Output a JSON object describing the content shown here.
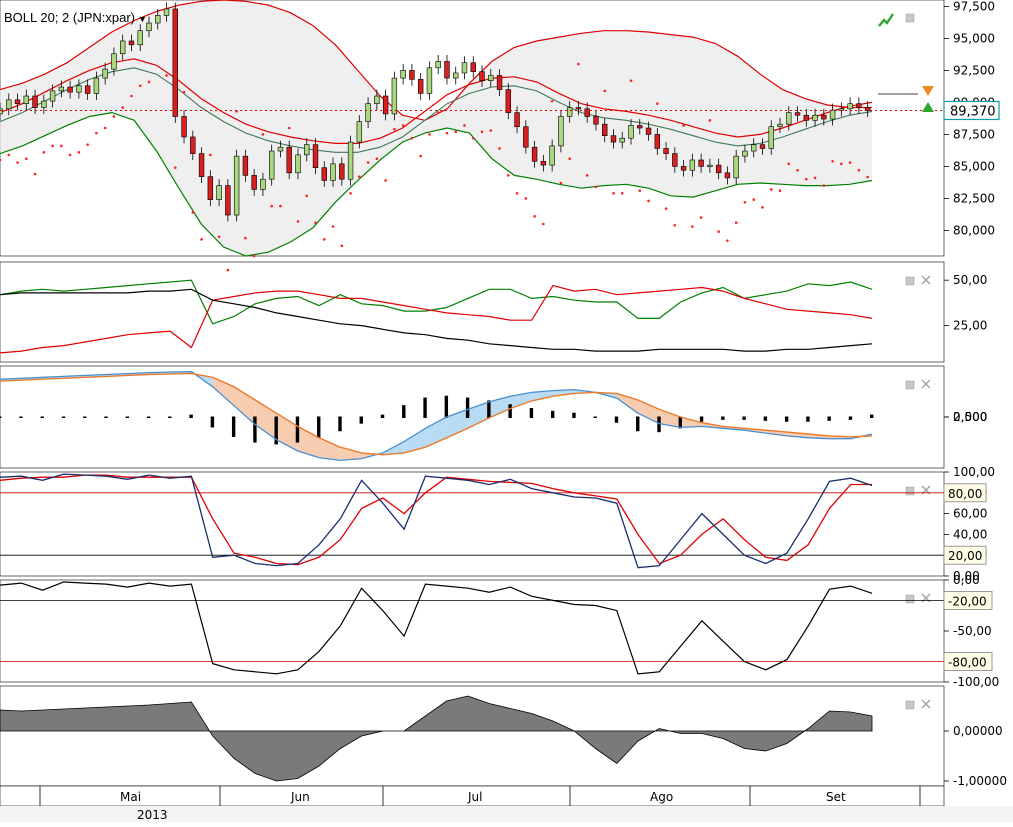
{
  "indicator_label": "BOLL 20; 2 (JPN:xpar)",
  "dropdown_icon": "triangle-down-icon",
  "colors": {
    "price_band_upper": "#e00000",
    "price_band_lower": "#008000",
    "price_band_mid": "#e00000",
    "price_band_fill": "#e8e8e8",
    "sar_dots": "#ff2020",
    "candle_up": "#a9d87f",
    "candle_down": "#d81e1e",
    "macd_line": "#4a90d0",
    "macd_signal": "#ee7a2a",
    "macd_fill_up": "#b9dbf4",
    "macd_fill_down": "#f6cdb0",
    "histogram": "#000000",
    "level_line_red": "#cc0000",
    "area_fill": "#7a7a7a",
    "last_price_label": "#0d9da4"
  },
  "chart_data": [
    {
      "name": "price",
      "type": "candlestick",
      "x": [
        "Mai",
        "Jun",
        "Jul",
        "Ago",
        "Set"
      ],
      "year_label": "2013",
      "y_ticks": [
        "97,500",
        "95,000",
        "92,500",
        "90,000",
        "87,500",
        "85,000",
        "82,500",
        "80,000"
      ],
      "ylim": [
        78000,
        98000
      ],
      "last_price": 89370,
      "last_price_label": "89,370",
      "candles_close": [
        89.5,
        90.2,
        89.9,
        90.5,
        89.6,
        90.1,
        90.9,
        91.2,
        90.8,
        91.3,
        90.7,
        91.9,
        92.6,
        93.8,
        94.8,
        94.5,
        95.6,
        96.2,
        96.8,
        97.3,
        88.9,
        87.3,
        86.0,
        84.2,
        82.4,
        83.5,
        81.2,
        85.8,
        84.3,
        83.2,
        84.0,
        86.2,
        86.5,
        84.5,
        85.9,
        86.7,
        84.9,
        83.9,
        85.2,
        84.0,
        86.9,
        88.5,
        89.9,
        90.5,
        89.1,
        91.9,
        92.5,
        91.8,
        90.7,
        92.7,
        93.2,
        91.9,
        92.3,
        93.1,
        92.4,
        91.7,
        92.1,
        91.0,
        89.2,
        88.1,
        86.5,
        85.4,
        85.1,
        86.6,
        88.9,
        89.6,
        89.5,
        88.9,
        88.3,
        87.4,
        86.9,
        87.2,
        88.2,
        88.0,
        87.5,
        86.4,
        86.0,
        85.0,
        84.7,
        85.5,
        85.0,
        85.1,
        84.5,
        84.1,
        85.8,
        86.2,
        86.7,
        86.4,
        88.1,
        88.3,
        89.2,
        89.0,
        88.6,
        89.0,
        88.7,
        89.4,
        89.5,
        89.9,
        89.6,
        89.37
      ],
      "upper_band": [
        91.0,
        91.5,
        92.2,
        93.1,
        94.3,
        95.5,
        96.4,
        97.1,
        97.6,
        97.9,
        98.0,
        97.9,
        97.6,
        97.0,
        96.0,
        94.5,
        92.5,
        90.5,
        89.0,
        88.6,
        89.5,
        91.5,
        93.2,
        94.3,
        94.8,
        95.1,
        95.4,
        95.6,
        95.6,
        95.5,
        95.3,
        95.1,
        94.6,
        93.6,
        92.2,
        91.0,
        90.3,
        89.8,
        89.6,
        89.6
      ],
      "middle_band": [
        88.5,
        89.2,
        90.1,
        91.0,
        91.8,
        92.4,
        92.7,
        92.2,
        91.0,
        89.6,
        88.5,
        87.6,
        87.0,
        86.6,
        86.3,
        86.1,
        86.1,
        86.5,
        87.3,
        88.6,
        89.9,
        90.7,
        91.2,
        91.3,
        90.9,
        90.0,
        89.2,
        88.8,
        88.6,
        88.3,
        87.9,
        87.4,
        86.9,
        86.6,
        86.8,
        87.3,
        87.9,
        88.5,
        89.0,
        89.3
      ],
      "lower_band": [
        86.0,
        86.6,
        87.4,
        88.2,
        88.9,
        89.2,
        88.6,
        86.2,
        83.3,
        80.5,
        78.7,
        78.0,
        78.3,
        79.1,
        80.2,
        82.2,
        83.9,
        85.5,
        86.9,
        87.6,
        88.0,
        87.6,
        85.6,
        84.3,
        84.0,
        83.6,
        83.3,
        83.5,
        83.6,
        83.3,
        82.7,
        82.6,
        83.1,
        83.6,
        83.7,
        83.6,
        83.5,
        83.5,
        83.6,
        83.9
      ]
    },
    {
      "name": "dmi",
      "type": "line",
      "y_ticks": [
        "50,00",
        "25,00"
      ],
      "ylim": [
        5,
        60
      ],
      "series": [
        {
          "values": [
            42,
            44,
            45,
            44,
            45,
            46,
            47,
            48,
            49,
            50,
            26,
            30,
            37,
            40,
            41,
            36,
            42,
            37,
            36,
            33,
            33,
            35,
            40,
            45,
            45,
            40,
            41,
            39,
            38,
            38,
            29,
            29,
            38,
            43,
            46,
            40,
            42,
            44,
            48,
            47,
            49,
            45
          ]
        },
        {
          "values": [
            10,
            11,
            13,
            14,
            16,
            18,
            20,
            21,
            22,
            13,
            39,
            41,
            43,
            44,
            44,
            42,
            40,
            40,
            38,
            36,
            34,
            32,
            31,
            30,
            28,
            28,
            47,
            44,
            45,
            42,
            43,
            44,
            45,
            46,
            44,
            40,
            37,
            34,
            33,
            32,
            31,
            29
          ]
        },
        {
          "values": [
            42,
            43,
            43,
            43,
            43,
            43,
            43,
            44,
            44,
            45,
            39,
            37,
            35,
            32,
            30,
            28,
            26,
            25,
            23,
            21,
            20,
            18,
            17,
            15,
            14,
            13,
            12,
            12,
            11,
            11,
            11,
            12,
            12,
            12,
            12,
            11,
            11,
            12,
            12,
            13,
            14,
            15
          ]
        }
      ]
    },
    {
      "name": "macd",
      "type": "line",
      "y_ticks": [
        "2,500",
        "0,000"
      ],
      "ylim": [
        -2700,
        2700
      ],
      "macd_line": [
        2000,
        2050,
        2100,
        2150,
        2200,
        2250,
        2300,
        2350,
        2380,
        2400,
        1600,
        600,
        -400,
        -1200,
        -1800,
        -2150,
        -2300,
        -2200,
        -1900,
        -1300,
        -600,
        0,
        400,
        800,
        1100,
        1300,
        1400,
        1450,
        1300,
        1000,
        200,
        -350,
        -550,
        -500,
        -600,
        -700,
        -850,
        -1000,
        -1100,
        -1150,
        -1150,
        -900
      ],
      "signal_line": [
        1900,
        1950,
        2000,
        2050,
        2100,
        2150,
        2200,
        2250,
        2280,
        2300,
        2100,
        1600,
        900,
        200,
        -500,
        -1100,
        -1600,
        -1900,
        -2000,
        -1900,
        -1600,
        -1100,
        -600,
        -50,
        450,
        850,
        1100,
        1250,
        1300,
        1250,
        900,
        400,
        0,
        -300,
        -500,
        -600,
        -700,
        -800,
        -900,
        -1000,
        -1050,
        -1000
      ],
      "histogram": [
        0,
        0,
        0,
        0,
        0,
        0,
        0,
        0,
        0,
        100,
        -500,
        -1000,
        -1300,
        -1400,
        -1300,
        -1050,
        -700,
        -300,
        100,
        600,
        1000,
        1100,
        1000,
        850,
        650,
        450,
        300,
        200,
        0,
        -250,
        -700,
        -750,
        -550,
        -200,
        -100,
        -100,
        -150,
        -200,
        -200,
        -150,
        -100,
        100
      ]
    },
    {
      "name": "stochastic",
      "type": "line",
      "y_ticks": [
        "100,00",
        "80,00",
        "60,00",
        "40,00",
        "20,00",
        "0,00"
      ],
      "ylim": [
        0,
        100
      ],
      "levels": [
        80,
        20
      ],
      "level_labels": [
        "80,00",
        "20,00"
      ],
      "k_line": [
        95,
        96,
        92,
        98,
        97,
        96,
        93,
        97,
        94,
        96,
        18,
        20,
        12,
        10,
        12,
        30,
        55,
        92,
        70,
        45,
        96,
        94,
        92,
        88,
        93,
        84,
        80,
        76,
        75,
        70,
        8,
        10,
        35,
        60,
        40,
        20,
        12,
        22,
        55,
        91,
        94,
        87
      ],
      "d_line": [
        92,
        94,
        95,
        95,
        97,
        97,
        95,
        95,
        95,
        95,
        55,
        22,
        18,
        12,
        11,
        18,
        35,
        65,
        75,
        60,
        80,
        95,
        93,
        91,
        90,
        89,
        84,
        80,
        77,
        74,
        40,
        12,
        20,
        40,
        55,
        35,
        18,
        15,
        30,
        65,
        88,
        88
      ]
    },
    {
      "name": "williams_r",
      "type": "line",
      "y_ticks": [
        "0,00",
        "-20,00",
        "-50,00",
        "-80,00",
        "-100,00"
      ],
      "ylim": [
        -100,
        0
      ],
      "levels": [
        -20,
        -80
      ],
      "level_labels": [
        "-20,00",
        "-80,00"
      ],
      "values": [
        -5,
        -3,
        -10,
        -2,
        -3,
        -4,
        -7,
        -3,
        -6,
        -4,
        -82,
        -88,
        -90,
        -92,
        -88,
        -70,
        -45,
        -8,
        -30,
        -55,
        -4,
        -6,
        -8,
        -12,
        -7,
        -16,
        -20,
        -24,
        -25,
        -30,
        -92,
        -90,
        -65,
        -40,
        -60,
        -80,
        -88,
        -78,
        -45,
        -9,
        -6,
        -13
      ]
    },
    {
      "name": "oscillator",
      "type": "area",
      "y_ticks": [
        "0,00000",
        "-1,00000"
      ],
      "ylim": [
        -1.1,
        0.9
      ],
      "values": [
        0.42,
        0.4,
        0.42,
        0.44,
        0.46,
        0.48,
        0.5,
        0.52,
        0.55,
        0.58,
        -0.1,
        -0.55,
        -0.85,
        -1.0,
        -0.95,
        -0.7,
        -0.35,
        -0.1,
        0.0,
        0.0,
        0.3,
        0.6,
        0.7,
        0.55,
        0.45,
        0.35,
        0.2,
        0.0,
        -0.35,
        -0.65,
        -0.2,
        0.05,
        -0.05,
        -0.05,
        -0.15,
        -0.35,
        -0.4,
        -0.25,
        0.05,
        0.4,
        0.38,
        0.3
      ]
    }
  ]
}
